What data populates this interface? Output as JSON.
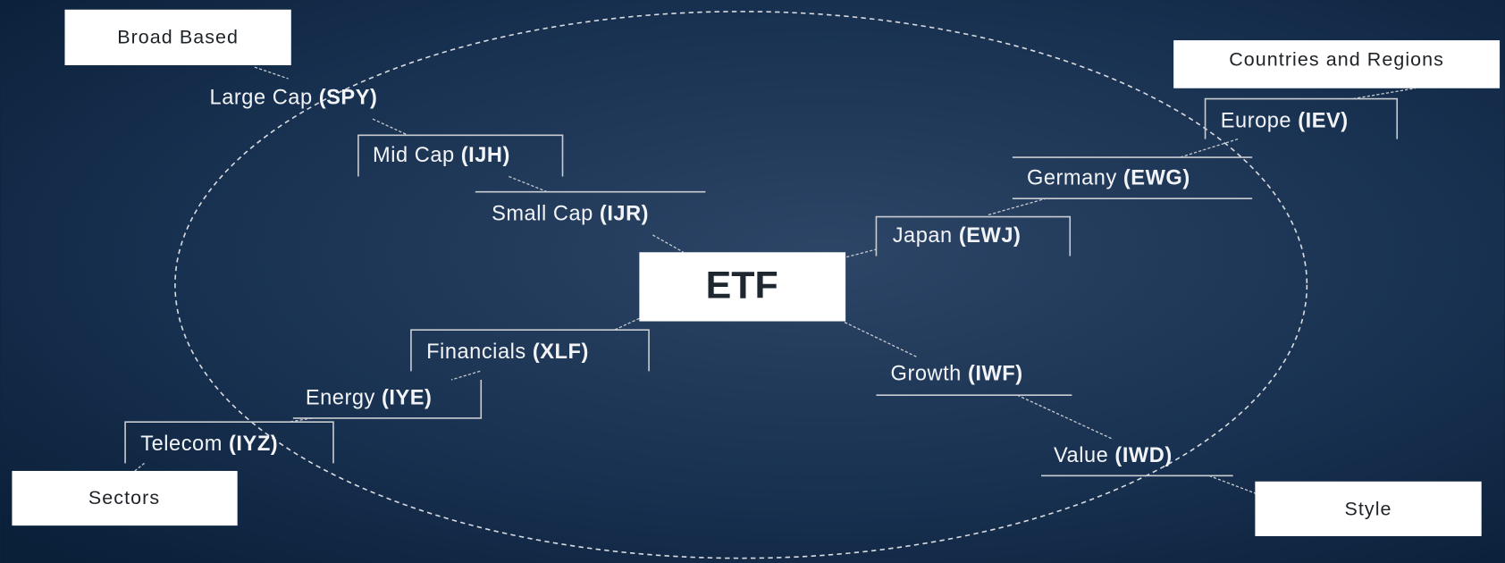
{
  "center": "ETF",
  "groups": [
    {
      "label": "Broad Based",
      "items": [
        {
          "name": "Large Cap",
          "ticker": "(SPY)"
        },
        {
          "name": "Mid Cap",
          "ticker": "(IJH)"
        },
        {
          "name": "Small Cap",
          "ticker": "(IJR)"
        }
      ]
    },
    {
      "label": "Countries and Regions",
      "items": [
        {
          "name": "Europe",
          "ticker": "(IEV)"
        },
        {
          "name": "Germany",
          "ticker": "(EWG)"
        },
        {
          "name": "Japan",
          "ticker": "(EWJ)"
        }
      ]
    },
    {
      "label": "Sectors",
      "items": [
        {
          "name": "Financials",
          "ticker": "(XLF)"
        },
        {
          "name": "Energy",
          "ticker": "(IYE)"
        },
        {
          "name": "Telecom",
          "ticker": "(IYZ)"
        }
      ]
    },
    {
      "label": "Style",
      "items": [
        {
          "name": "Growth",
          "ticker": "(IWF)"
        },
        {
          "name": "Value",
          "ticker": "(IWD)"
        }
      ]
    }
  ]
}
